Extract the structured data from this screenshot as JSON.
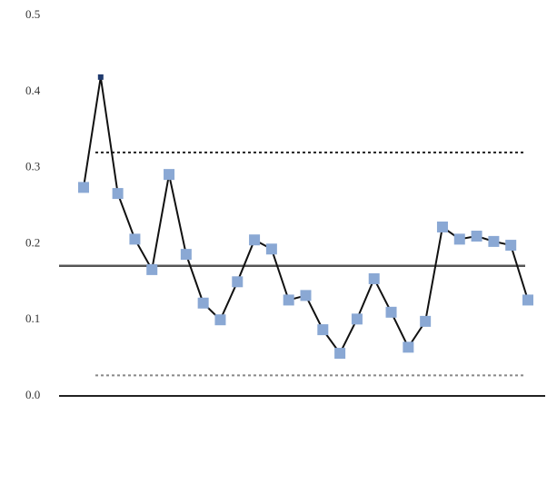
{
  "chart_data": {
    "type": "line",
    "categories": [
      null,
      null,
      null,
      null,
      null,
      null,
      null,
      null,
      null,
      null,
      null,
      null,
      null,
      null,
      null,
      null,
      null,
      null,
      null,
      null,
      null,
      null,
      null,
      null,
      null,
      null,
      null
    ],
    "series": [
      {
        "color": "#111111",
        "values": [
          0.274,
          0.419,
          0.266,
          0.206,
          0.166,
          0.291,
          0.186,
          0.122,
          0.1,
          0.15,
          0.205,
          0.193,
          0.126,
          0.132,
          0.087,
          0.056,
          0.101,
          0.154,
          0.11,
          0.064,
          0.098,
          0.222,
          0.206,
          0.21,
          0.203,
          0.198,
          0.126
        ],
        "marker_colors": [
          "#8aa8d4",
          "#1f3a6e",
          "#8aa8d4",
          "#8aa8d4",
          "#8aa8d4",
          "#8aa8d4",
          "#8aa8d4",
          "#8aa8d4",
          "#8aa8d4",
          "#8aa8d4",
          "#8aa8d4",
          "#8aa8d4",
          "#8aa8d4",
          "#8aa8d4",
          "#8aa8d4",
          "#8aa8d4",
          "#8aa8d4",
          "#8aa8d4",
          "#8aa8d4",
          "#8aa8d4",
          "#8aa8d4",
          "#8aa8d4",
          "#8aa8d4",
          "#8aa8d4",
          "#8aa8d4",
          "#8aa8d4",
          "#8aa8d4"
        ]
      }
    ],
    "reference_lines": [
      {
        "value": 0.32,
        "style": "dotted",
        "color": "#222222"
      },
      {
        "value": 0.171,
        "style": "solid",
        "color": "#555555"
      },
      {
        "value": 0.027,
        "style": "dotted",
        "color": "#888888"
      }
    ],
    "ylim": [
      0,
      0.5
    ],
    "yticks": [
      {
        "value": 0,
        "label": "0.0"
      },
      0.1,
      0.2,
      0.3,
      0.4,
      0.5
    ],
    "grid": false
  }
}
